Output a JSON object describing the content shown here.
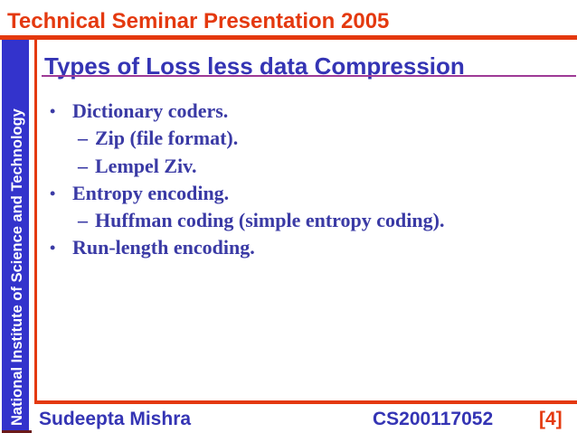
{
  "header": {
    "title": "Technical Seminar Presentation 2005"
  },
  "sidebar": {
    "institute": "National Institute of Science and Technology"
  },
  "slide": {
    "title": "Types of Loss less data Compression",
    "bullets": [
      {
        "level": 1,
        "text": "Dictionary coders."
      },
      {
        "level": 2,
        "text": "Zip (file format)."
      },
      {
        "level": 2,
        "text": "Lempel Ziv."
      },
      {
        "level": 1,
        "text": "Entropy encoding."
      },
      {
        "level": 2,
        "text": "Huffman coding (simple entropy coding)."
      },
      {
        "level": 1,
        "text": "Run-length encoding."
      }
    ]
  },
  "bullet_markers": {
    "level1": "•",
    "level2": "–"
  },
  "footer": {
    "author": "Sudeepta Mishra",
    "roll_no": "CS200117052",
    "page_number": "[4]"
  },
  "colors": {
    "accent_red": "#e4390f",
    "bar_blue": "#3333cc",
    "title_blue": "#3434b4",
    "body_blue": "#3a3aa5",
    "underline_purple": "#9e3a96",
    "sidebar_text": "#ffffff"
  }
}
